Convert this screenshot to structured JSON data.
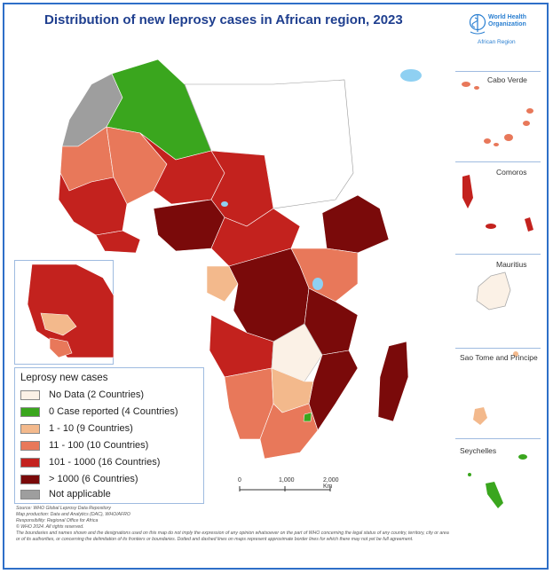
{
  "title": "Distribution of new leprosy cases in African region,  2023",
  "logo": {
    "line1": "World Health",
    "line2": "Organization",
    "region": "African Region",
    "color": "#2a7fd1"
  },
  "legend": {
    "title": "Leprosy new cases",
    "items": [
      {
        "label": "No Data (2 Countries)",
        "color": "#fbf1e6"
      },
      {
        "label": "0 Case reported (4 Countries)",
        "color": "#3aa61e"
      },
      {
        "label": "1 - 10 (9 Countries)",
        "color": "#f3b98c"
      },
      {
        "label": "11 - 100 (10 Countries)",
        "color": "#e8785a"
      },
      {
        "label": "101 - 1000 (16 Countries)",
        "color": "#c3221e"
      },
      {
        "label": "> 1000 (6 Countries)",
        "color": "#7a0a0a"
      },
      {
        "label": "Not applicable",
        "color": "#9e9e9e"
      }
    ]
  },
  "insets": [
    {
      "label": "Cabo Verde"
    },
    {
      "label": "Comoros"
    },
    {
      "label": "Mauritius"
    },
    {
      "label": "Sao Tome and Principe"
    },
    {
      "label": "Seychelles"
    }
  ],
  "scale": {
    "zero": "0",
    "mid": "1,000",
    "end": "2,000 Km"
  },
  "footer": [
    "Source: WHO Global Leprosy Data Repository",
    "Map production: Data and Analytics (DAC), WHO/AFRO",
    "Responsibility: Regional Office for Africa",
    "© WHO 2024. All rights reserved.",
    "The boundaries and names shown and the designations used on this map do not imply the expression of any opinion whatsoever on the part of WHO concerning the legal status of any country, territory, city or area",
    "or of its authorities, or concerning the delimitation of its frontiers or boundaries. Dotted and dashed lines on maps represent approximate border lines for which there may not yet be full agreement."
  ]
}
